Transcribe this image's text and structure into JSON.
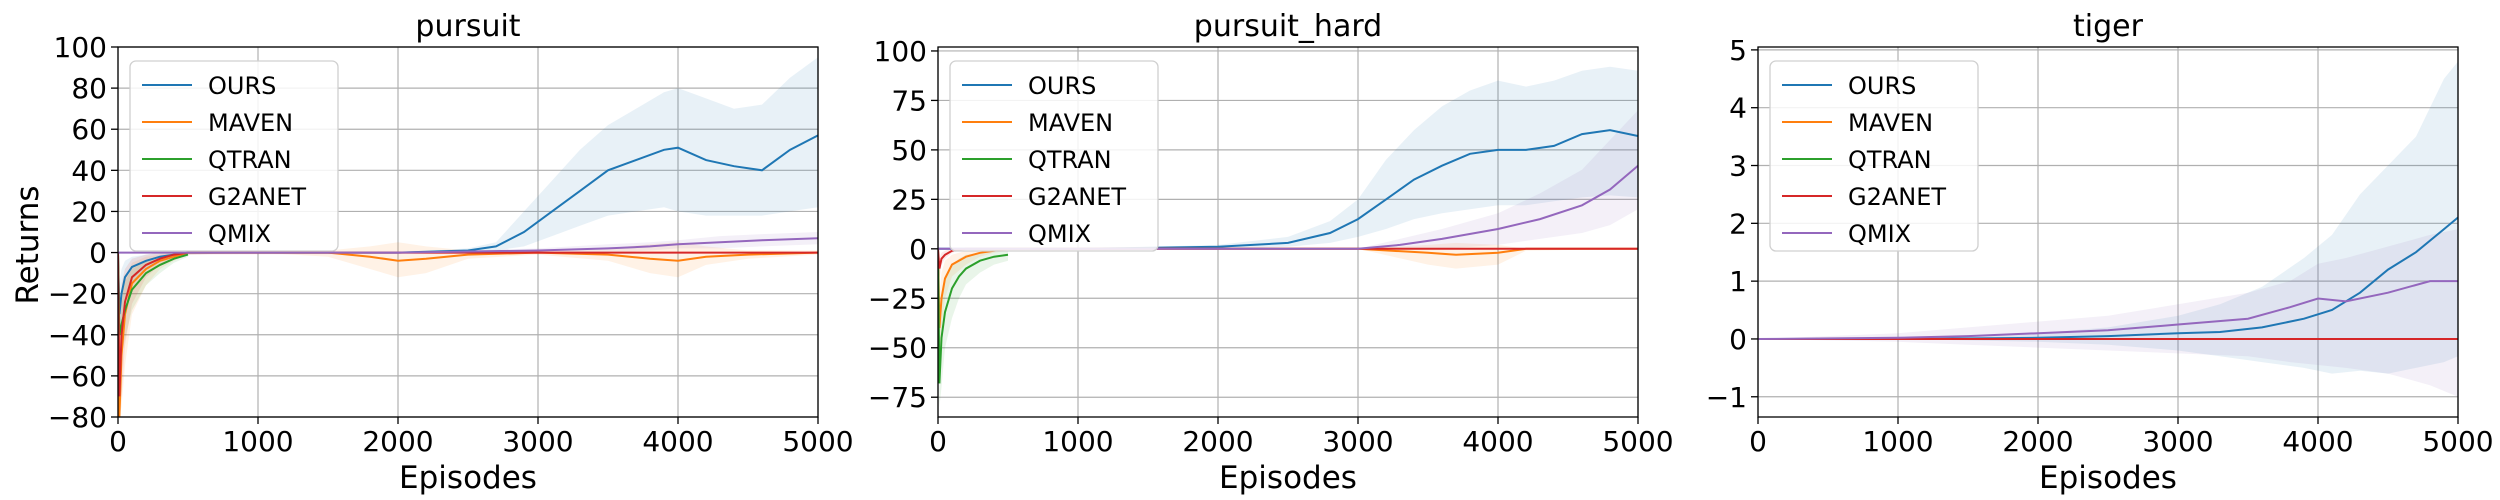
{
  "figure": {
    "ylabel": "Returns",
    "xlabel": "Episodes"
  },
  "colors": {
    "OURS": "#1f77b4",
    "MAVEN": "#ff7f0e",
    "QTRAN": "#2ca02c",
    "G2ANET": "#d62728",
    "QMIX": "#9467bd"
  },
  "chart_data": [
    {
      "type": "line",
      "title": "pursuit",
      "xlabel": "Episodes",
      "ylabel": "Returns",
      "xlim": [
        0,
        5000
      ],
      "ylim": [
        -80,
        100
      ],
      "xticks": [
        0,
        1000,
        2000,
        3000,
        4000,
        5000
      ],
      "yticks": [
        -80,
        -60,
        -40,
        -20,
        0,
        20,
        40,
        60,
        80,
        100
      ],
      "grid": true,
      "legend": "top-left",
      "series": [
        {
          "name": "OURS",
          "x": [
            0,
            10,
            25,
            50,
            100,
            200,
            300,
            400,
            500,
            1000,
            2000,
            2500,
            2700,
            2900,
            3100,
            3300,
            3500,
            3700,
            3900,
            4000,
            4200,
            4400,
            4600,
            4800,
            5000
          ],
          "y": [
            0,
            -30,
            -20,
            -12,
            -7,
            -4,
            -2,
            -1,
            0,
            0,
            0,
            1,
            3,
            10,
            20,
            30,
            40,
            45,
            50,
            51,
            45,
            42,
            40,
            50,
            57
          ],
          "lower": [
            0,
            -45,
            -35,
            -25,
            -15,
            -8,
            -4,
            -2,
            -1,
            0,
            0,
            0,
            1,
            3,
            8,
            13,
            18,
            20,
            22,
            20,
            18,
            18,
            18,
            20,
            22
          ],
          "upper": [
            0,
            -15,
            -8,
            -4,
            -2,
            -1,
            0,
            0,
            0,
            0,
            0,
            2,
            5,
            20,
            35,
            50,
            62,
            70,
            78,
            80,
            75,
            70,
            72,
            85,
            95
          ]
        },
        {
          "name": "MAVEN",
          "x": [
            0,
            10,
            25,
            50,
            100,
            200,
            300,
            400,
            500,
            1000,
            1500,
            1800,
            2000,
            2200,
            2500,
            3000,
            3500,
            3800,
            4000,
            4200,
            4500,
            5000
          ],
          "y": [
            0,
            -80,
            -50,
            -30,
            -15,
            -8,
            -4,
            -2,
            0,
            0,
            0,
            -2,
            -4,
            -3,
            -1,
            0,
            -1,
            -3,
            -4,
            -2,
            -1,
            0
          ],
          "lower": [
            0,
            -80,
            -75,
            -55,
            -30,
            -16,
            -8,
            -4,
            -1,
            0,
            -2,
            -8,
            -12,
            -10,
            -3,
            -1,
            -4,
            -10,
            -12,
            -6,
            -3,
            -1
          ],
          "upper": [
            0,
            -50,
            -25,
            -12,
            -5,
            -2,
            -1,
            0,
            0,
            0,
            1,
            3,
            5,
            3,
            1,
            1,
            2,
            4,
            5,
            3,
            1,
            1
          ]
        },
        {
          "name": "QTRAN",
          "x": [
            0,
            10,
            25,
            50,
            100,
            200,
            300,
            400,
            500
          ],
          "y": [
            0,
            -40,
            -35,
            -28,
            -18,
            -10,
            -6,
            -3,
            -1
          ],
          "lower": [
            0,
            -55,
            -50,
            -42,
            -28,
            -16,
            -10,
            -5,
            -2
          ],
          "upper": [
            0,
            -25,
            -20,
            -14,
            -8,
            -4,
            -2,
            -1,
            0
          ]
        },
        {
          "name": "G2ANET",
          "x": [
            0,
            10,
            25,
            50,
            100,
            200,
            300,
            400,
            500,
            5000
          ],
          "y": [
            0,
            -70,
            -40,
            -24,
            -12,
            -6,
            -3,
            -1,
            0,
            0
          ],
          "lower": [
            0,
            -80,
            -70,
            -45,
            -25,
            -12,
            -6,
            -2,
            -1,
            0
          ],
          "upper": [
            0,
            -40,
            -15,
            -8,
            -3,
            -1,
            0,
            0,
            0,
            0
          ]
        },
        {
          "name": "QMIX",
          "x": [
            0,
            500,
            1000,
            2000,
            3000,
            3500,
            3800,
            4000,
            4300,
            4600,
            5000
          ],
          "y": [
            0,
            0,
            0,
            0,
            1,
            2,
            3,
            4,
            5,
            6,
            7
          ],
          "lower": [
            0,
            0,
            0,
            0,
            0,
            0,
            1,
            2,
            2,
            3,
            4
          ],
          "upper": [
            0,
            0,
            0,
            0,
            2,
            4,
            5,
            6,
            8,
            9,
            10
          ]
        }
      ]
    },
    {
      "type": "line",
      "title": "pursuit_hard",
      "xlabel": "Episodes",
      "ylabel": "",
      "xlim": [
        0,
        5000
      ],
      "ylim": [
        -85,
        102
      ],
      "xticks": [
        0,
        1000,
        2000,
        3000,
        4000,
        5000
      ],
      "yticks": [
        -75,
        -50,
        -25,
        0,
        25,
        50,
        75,
        100
      ],
      "grid": true,
      "legend": "top-left",
      "series": [
        {
          "name": "OURS",
          "x": [
            0,
            500,
            1000,
            2000,
            2500,
            2800,
            3000,
            3200,
            3400,
            3600,
            3800,
            4000,
            4200,
            4400,
            4600,
            4800,
            5000
          ],
          "y": [
            0,
            0,
            0,
            1,
            3,
            8,
            15,
            25,
            35,
            42,
            48,
            50,
            50,
            52,
            58,
            60,
            57
          ],
          "lower": [
            0,
            0,
            0,
            0,
            1,
            3,
            6,
            10,
            15,
            18,
            20,
            22,
            22,
            24,
            26,
            27,
            26
          ],
          "upper": [
            0,
            0,
            0,
            2,
            6,
            14,
            25,
            45,
            60,
            72,
            80,
            85,
            82,
            85,
            90,
            92,
            90
          ]
        },
        {
          "name": "MAVEN",
          "x": [
            0,
            10,
            25,
            50,
            100,
            200,
            300,
            400,
            500,
            3000,
            3500,
            3700,
            4000,
            4200,
            5000
          ],
          "y": [
            0,
            -40,
            -25,
            -15,
            -8,
            -4,
            -2,
            -1,
            0,
            0,
            -2,
            -3,
            -2,
            0,
            0
          ],
          "lower": [
            0,
            -55,
            -40,
            -25,
            -14,
            -8,
            -4,
            -2,
            -1,
            0,
            -8,
            -10,
            -8,
            -1,
            0
          ],
          "upper": [
            0,
            -25,
            -12,
            -6,
            -3,
            -1,
            0,
            0,
            0,
            0,
            2,
            3,
            2,
            0,
            0
          ]
        },
        {
          "name": "QTRAN",
          "x": [
            0,
            10,
            25,
            50,
            100,
            150,
            200,
            300,
            400,
            500
          ],
          "y": [
            0,
            -68,
            -45,
            -32,
            -20,
            -14,
            -10,
            -6,
            -4,
            -3
          ],
          "lower": [
            0,
            -80,
            -70,
            -50,
            -35,
            -25,
            -18,
            -12,
            -8,
            -6
          ],
          "upper": [
            0,
            -45,
            -25,
            -15,
            -8,
            -5,
            -3,
            -2,
            -1,
            -1
          ]
        },
        {
          "name": "G2ANET",
          "x": [
            0,
            10,
            25,
            50,
            100,
            200,
            5000
          ],
          "y": [
            0,
            -10,
            -5,
            -3,
            -1,
            0,
            0
          ],
          "lower": [
            0,
            -15,
            -8,
            -5,
            -2,
            0,
            0
          ],
          "upper": [
            0,
            -5,
            -2,
            -1,
            0,
            0,
            0
          ]
        },
        {
          "name": "QMIX",
          "x": [
            0,
            500,
            1000,
            2000,
            3000,
            3300,
            3600,
            4000,
            4300,
            4600,
            4800,
            5000
          ],
          "y": [
            0,
            0,
            0,
            0,
            0,
            2,
            5,
            10,
            15,
            22,
            30,
            42
          ],
          "lower": [
            0,
            0,
            0,
            0,
            0,
            0,
            0,
            2,
            5,
            8,
            12,
            20
          ],
          "upper": [
            0,
            0,
            0,
            0,
            0,
            5,
            10,
            18,
            28,
            40,
            55,
            70
          ]
        }
      ]
    },
    {
      "type": "line",
      "title": "tiger",
      "xlabel": "Episodes",
      "ylabel": "",
      "xlim": [
        0,
        5000
      ],
      "ylim": [
        -1.35,
        5.05
      ],
      "xticks": [
        0,
        1000,
        2000,
        3000,
        4000,
        5000
      ],
      "yticks": [
        -1,
        0,
        1,
        2,
        3,
        4,
        5
      ],
      "grid": true,
      "legend": "top-left",
      "series": [
        {
          "name": "OURS",
          "x": [
            0,
            1000,
            2000,
            2500,
            3000,
            3300,
            3600,
            3900,
            4100,
            4300,
            4500,
            4700,
            4900,
            5000
          ],
          "y": [
            0,
            0,
            0.02,
            0.05,
            0.1,
            0.12,
            0.2,
            0.35,
            0.5,
            0.8,
            1.2,
            1.5,
            1.9,
            2.1
          ],
          "lower": [
            0,
            0,
            -0.05,
            -0.1,
            -0.2,
            -0.3,
            -0.4,
            -0.5,
            -0.6,
            -0.55,
            -0.6,
            -0.5,
            -0.4,
            -0.3
          ],
          "upper": [
            0,
            0,
            0.1,
            0.2,
            0.4,
            0.6,
            0.9,
            1.4,
            1.8,
            2.5,
            3.0,
            3.5,
            4.5,
            4.8
          ]
        },
        {
          "name": "MAVEN",
          "x": [
            0,
            5000
          ],
          "y": [
            0,
            0
          ],
          "lower": [
            0,
            0
          ],
          "upper": [
            0,
            0
          ]
        },
        {
          "name": "QTRAN",
          "x": [
            0,
            5000
          ],
          "y": [
            0,
            0
          ],
          "lower": [
            0,
            0
          ],
          "upper": [
            0,
            0
          ]
        },
        {
          "name": "G2ANET",
          "x": [
            0,
            5000
          ],
          "y": [
            0,
            0
          ],
          "lower": [
            0,
            0
          ],
          "upper": [
            0,
            0
          ]
        },
        {
          "name": "QMIX",
          "x": [
            0,
            1000,
            1500,
            2000,
            2500,
            3000,
            3500,
            3800,
            4000,
            4200,
            4500,
            4800,
            5000
          ],
          "y": [
            0,
            0.02,
            0.05,
            0.1,
            0.15,
            0.25,
            0.35,
            0.55,
            0.7,
            0.65,
            0.8,
            1.0,
            1.0
          ],
          "lower": [
            0,
            -0.05,
            -0.1,
            -0.15,
            -0.2,
            -0.25,
            -0.3,
            -0.4,
            -0.45,
            -0.5,
            -0.6,
            -0.8,
            -1.0
          ],
          "upper": [
            0,
            0.1,
            0.2,
            0.3,
            0.4,
            0.6,
            0.8,
            1.0,
            1.3,
            1.4,
            1.6,
            1.8,
            1.9
          ]
        }
      ]
    }
  ]
}
